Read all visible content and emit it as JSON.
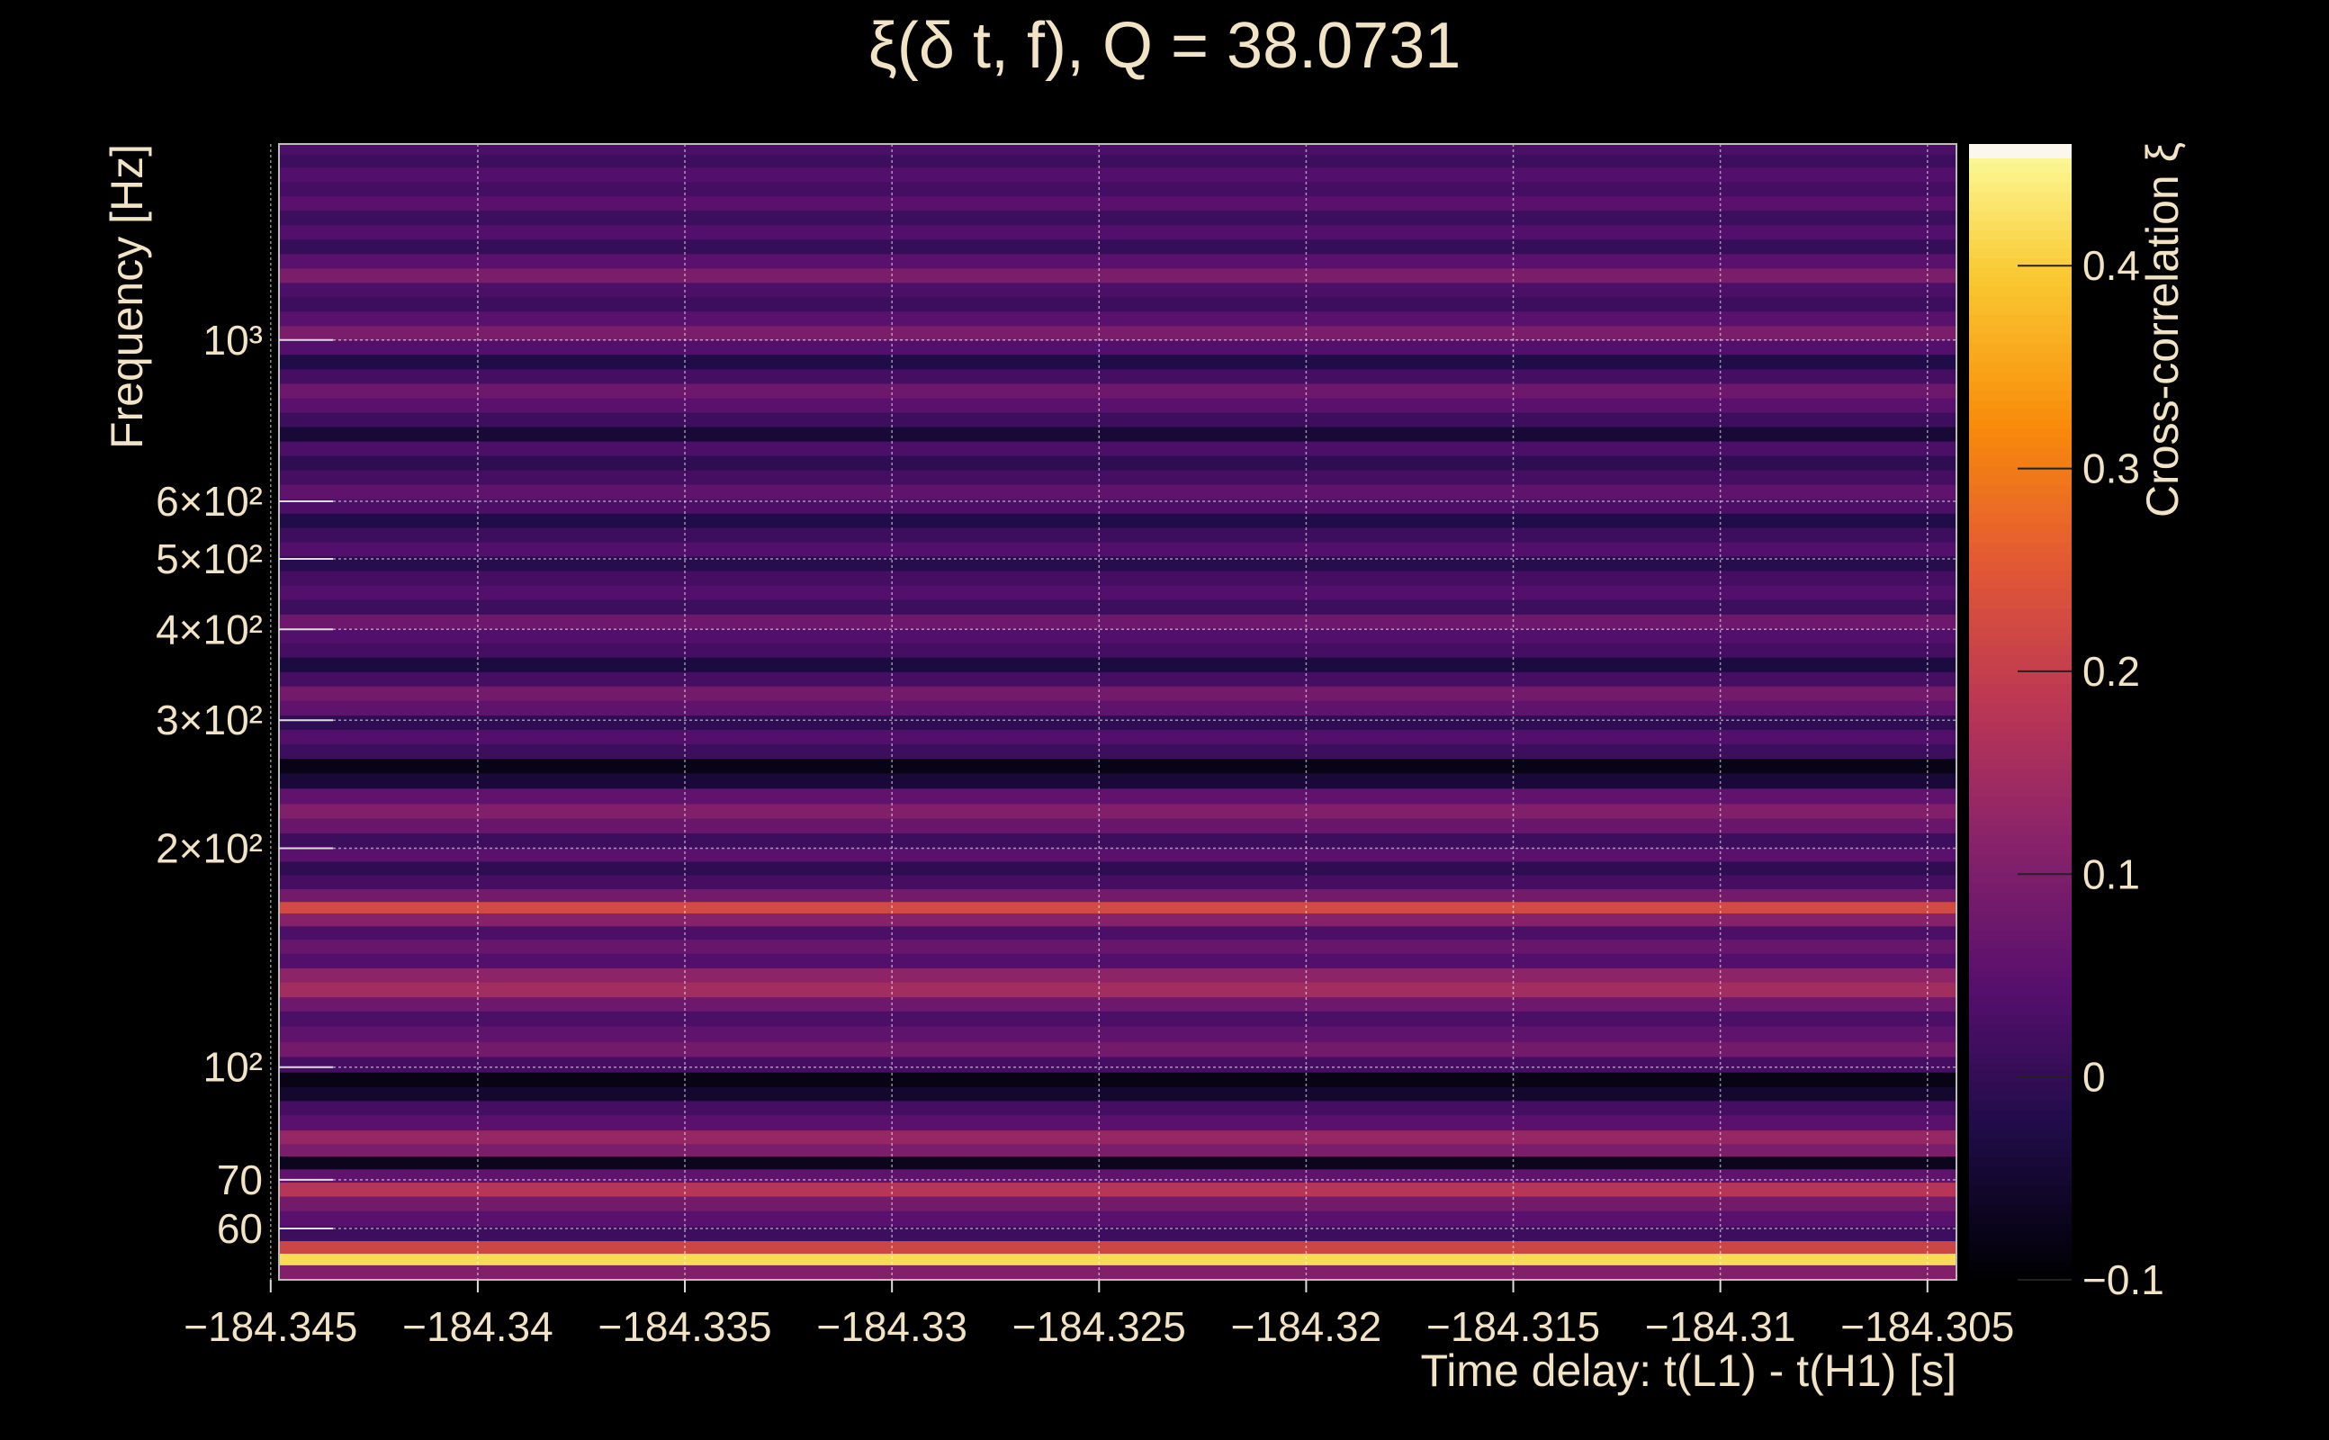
{
  "chart_data": {
    "type": "heatmap",
    "title": "ξ(δ t, f), Q = 38.0731",
    "xlabel": "Time delay: t(L1) - t(H1) [s]",
    "ylabel": "Frequency [Hz]",
    "colorbar_label": "Cross-correlation ξ",
    "x_range": [
      -184.3448,
      -184.3043
    ],
    "y_range": [
      51,
      1860
    ],
    "y_scale": "log",
    "z_range": [
      -0.1,
      0.46
    ],
    "grid": true,
    "x_ticks": [
      {
        "value": -184.345,
        "label": "−184.345"
      },
      {
        "value": -184.34,
        "label": "−184.34"
      },
      {
        "value": -184.335,
        "label": "−184.335"
      },
      {
        "value": -184.33,
        "label": "−184.33"
      },
      {
        "value": -184.325,
        "label": "−184.325"
      },
      {
        "value": -184.32,
        "label": "−184.32"
      },
      {
        "value": -184.315,
        "label": "−184.315"
      },
      {
        "value": -184.31,
        "label": "−184.31"
      },
      {
        "value": -184.305,
        "label": "−184.305"
      }
    ],
    "y_ticks": [
      {
        "value": 60,
        "label": "60"
      },
      {
        "value": 70,
        "label": "70"
      },
      {
        "value": 100,
        "label": "10²"
      },
      {
        "value": 200,
        "label": "2×10²"
      },
      {
        "value": 300,
        "label": "3×10²"
      },
      {
        "value": 400,
        "label": "4×10²"
      },
      {
        "value": 500,
        "label": "5×10²"
      },
      {
        "value": 600,
        "label": "6×10²"
      },
      {
        "value": 1000,
        "label": "10³"
      }
    ],
    "colorbar_ticks": [
      {
        "value": -0.1,
        "label": "−0.1"
      },
      {
        "value": 0,
        "label": "0"
      },
      {
        "value": 0.1,
        "label": "0.1"
      },
      {
        "value": 0.2,
        "label": "0.2"
      },
      {
        "value": 0.3,
        "label": "0.3"
      },
      {
        "value": 0.4,
        "label": "0.4"
      }
    ],
    "bands": [
      {
        "f": 52.5,
        "z": 0.12
      },
      {
        "f": 54.5,
        "z": 0.46
      },
      {
        "f": 56.5,
        "z": 0.24
      },
      {
        "f": 59,
        "z": 0.02
      },
      {
        "f": 62,
        "z": 0.06
      },
      {
        "f": 65,
        "z": 0.1
      },
      {
        "f": 68,
        "z": 0.2
      },
      {
        "f": 71,
        "z": 0.07
      },
      {
        "f": 74,
        "z": -0.07
      },
      {
        "f": 77,
        "z": 0.11
      },
      {
        "f": 80,
        "z": 0.15
      },
      {
        "f": 84,
        "z": 0.06
      },
      {
        "f": 88,
        "z": 0.03
      },
      {
        "f": 92,
        "z": -0.05
      },
      {
        "f": 96,
        "z": -0.08
      },
      {
        "f": 101,
        "z": 0.03
      },
      {
        "f": 106,
        "z": 0.1
      },
      {
        "f": 111,
        "z": 0.07
      },
      {
        "f": 117,
        "z": 0.04
      },
      {
        "f": 122,
        "z": 0.09
      },
      {
        "f": 128,
        "z": 0.17
      },
      {
        "f": 134,
        "z": 0.14
      },
      {
        "f": 140,
        "z": 0.05
      },
      {
        "f": 147,
        "z": 0.08
      },
      {
        "f": 153,
        "z": 0.04
      },
      {
        "f": 160,
        "z": 0.13
      },
      {
        "f": 166,
        "z": 0.25
      },
      {
        "f": 172,
        "z": 0.1
      },
      {
        "f": 180,
        "z": 0.03
      },
      {
        "f": 188,
        "z": 0.0
      },
      {
        "f": 196,
        "z": 0.06
      },
      {
        "f": 205,
        "z": 0.02
      },
      {
        "f": 215,
        "z": 0.08
      },
      {
        "f": 225,
        "z": 0.12
      },
      {
        "f": 236,
        "z": 0.07
      },
      {
        "f": 248,
        "z": -0.04
      },
      {
        "f": 260,
        "z": -0.08
      },
      {
        "f": 272,
        "z": 0.02
      },
      {
        "f": 285,
        "z": 0.05
      },
      {
        "f": 298,
        "z": 0.0
      },
      {
        "f": 312,
        "z": 0.07
      },
      {
        "f": 327,
        "z": 0.1
      },
      {
        "f": 342,
        "z": 0.03
      },
      {
        "f": 358,
        "z": -0.03
      },
      {
        "f": 375,
        "z": 0.03
      },
      {
        "f": 392,
        "z": 0.05
      },
      {
        "f": 410,
        "z": 0.09
      },
      {
        "f": 430,
        "z": 0.02
      },
      {
        "f": 450,
        "z": 0.05
      },
      {
        "f": 471,
        "z": 0.03
      },
      {
        "f": 493,
        "z": -0.01
      },
      {
        "f": 516,
        "z": 0.05
      },
      {
        "f": 540,
        "z": 0.02
      },
      {
        "f": 565,
        "z": -0.02
      },
      {
        "f": 591,
        "z": 0.04
      },
      {
        "f": 619,
        "z": 0.07
      },
      {
        "f": 648,
        "z": 0.03
      },
      {
        "f": 678,
        "z": 0.0
      },
      {
        "f": 710,
        "z": 0.04
      },
      {
        "f": 743,
        "z": -0.04
      },
      {
        "f": 778,
        "z": 0.02
      },
      {
        "f": 814,
        "z": 0.06
      },
      {
        "f": 852,
        "z": 0.09
      },
      {
        "f": 892,
        "z": 0.03
      },
      {
        "f": 934,
        "z": -0.02
      },
      {
        "f": 978,
        "z": 0.05
      },
      {
        "f": 1023,
        "z": 0.11
      },
      {
        "f": 1071,
        "z": 0.06
      },
      {
        "f": 1121,
        "z": 0.02
      },
      {
        "f": 1173,
        "z": 0.04
      },
      {
        "f": 1228,
        "z": 0.11
      },
      {
        "f": 1285,
        "z": 0.06
      },
      {
        "f": 1345,
        "z": 0.01
      },
      {
        "f": 1408,
        "z": 0.05
      },
      {
        "f": 1474,
        "z": 0.02
      },
      {
        "f": 1543,
        "z": 0.06
      },
      {
        "f": 1615,
        "z": 0.03
      },
      {
        "f": 1690,
        "z": 0.05
      },
      {
        "f": 1769,
        "z": 0.02
      },
      {
        "f": 1830,
        "z": 0.04
      }
    ]
  }
}
